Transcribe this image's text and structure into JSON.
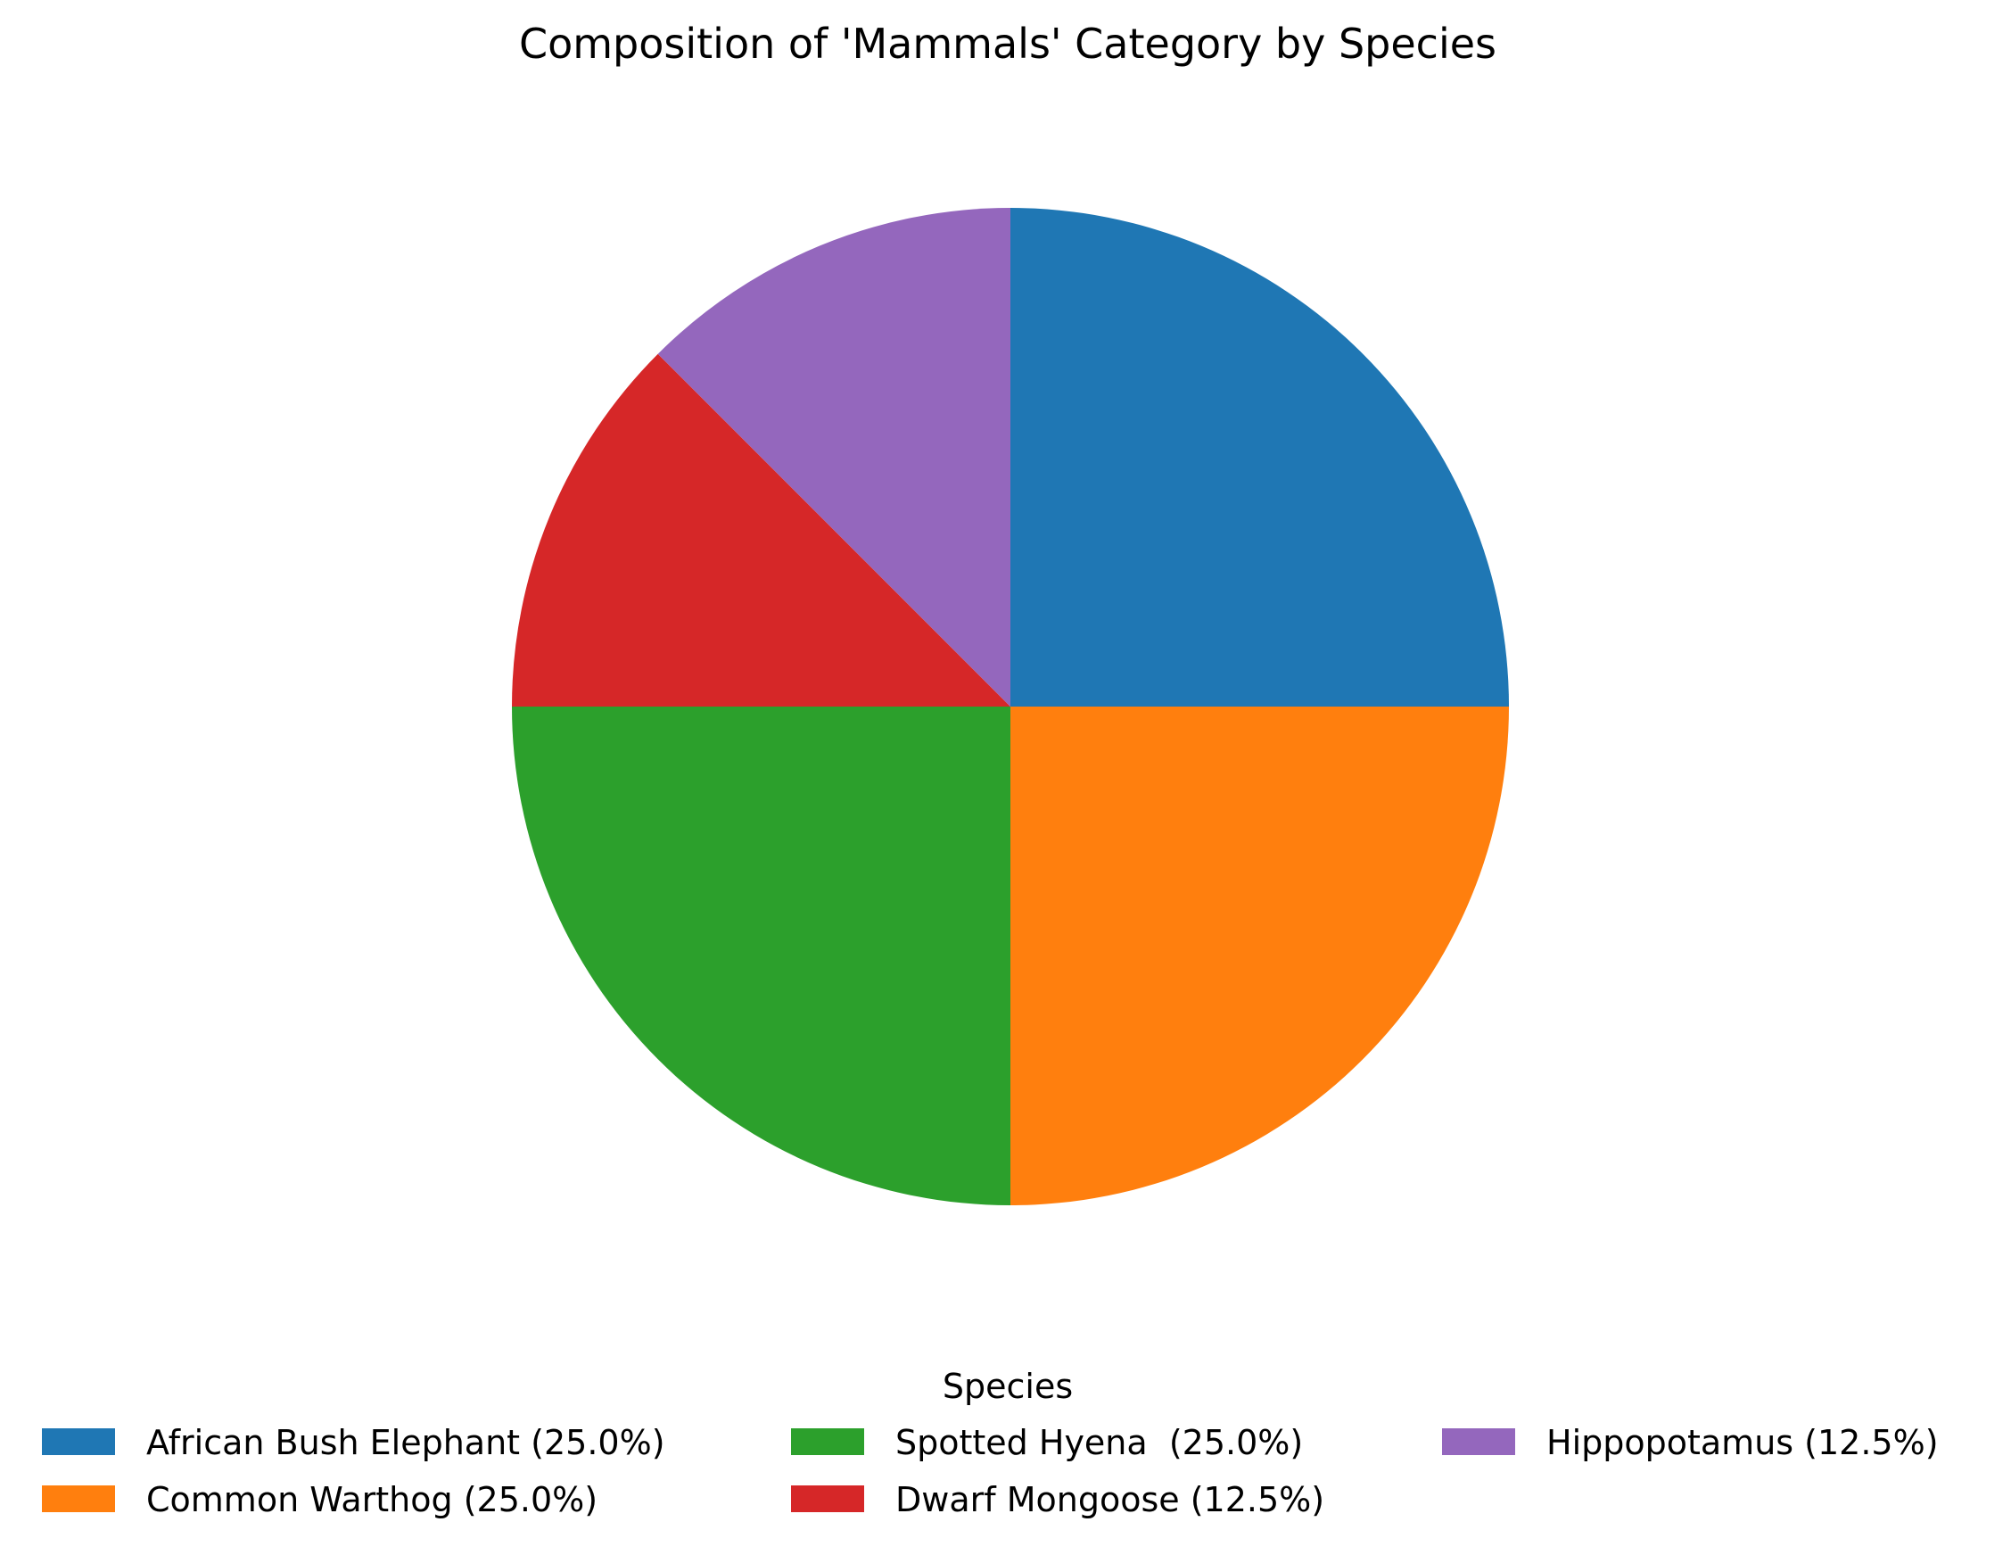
{
  "chart_data": {
    "type": "pie",
    "title": "Composition of 'Mammals' Category by Species",
    "legend_title": "Species",
    "legend_position": "bottom-center",
    "start_angle_deg": 90,
    "direction": "clockwise",
    "slices": [
      {
        "label": "African Bush Elephant (25.0%)",
        "value": 25.0,
        "color": "#1f77b4"
      },
      {
        "label": "Common Warthog (25.0%)",
        "value": 25.0,
        "color": "#ff7f0e"
      },
      {
        "label": "Spotted Hyena  (25.0%)",
        "value": 25.0,
        "color": "#2ca02c"
      },
      {
        "label": "Dwarf Mongoose (12.5%)",
        "value": 12.5,
        "color": "#d62728"
      },
      {
        "label": "Hippopotamus (12.5%)",
        "value": 12.5,
        "color": "#9467bd"
      }
    ]
  }
}
